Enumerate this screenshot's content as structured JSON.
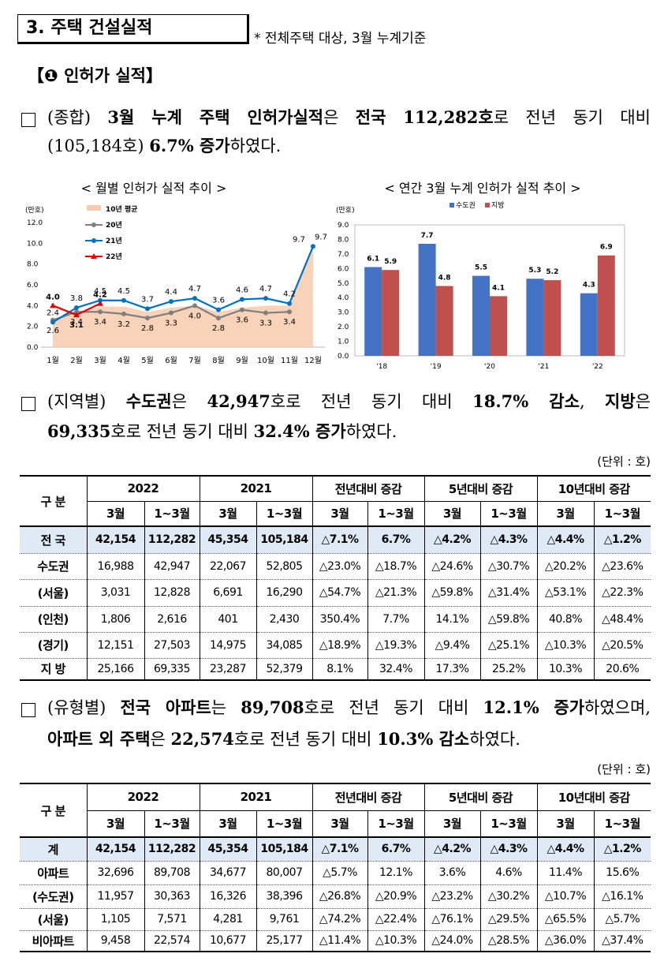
{
  "header": {
    "title": "3. 주택 건설실적",
    "note": "* 전체주택 대상, 3월 누계기준"
  },
  "section": "【❶ 인허가 실적】",
  "paragraphs": [
    {
      "lines": [
        [
          {
            "text": "(종합) ",
            "bold": false
          },
          {
            "text": "3월 누계 주택 인허가실적",
            "bold": true
          },
          {
            "text": "은 ",
            "bold": false
          },
          {
            "text": "전국 112,282호",
            "bold": true
          },
          {
            "text": "로 전년 동기 대비",
            "bold": false
          }
        ],
        [
          {
            "text": "(105,184호) ",
            "bold": false
          },
          {
            "text": "6.7% 증가",
            "bold": true
          },
          {
            "text": "하였다.",
            "bold": false
          }
        ]
      ]
    },
    {
      "lines": [
        [
          {
            "text": "(지역별) ",
            "bold": false
          },
          {
            "text": "수도권",
            "bold": true
          },
          {
            "text": "은 ",
            "bold": false
          },
          {
            "text": "42,947",
            "bold": true
          },
          {
            "text": "호로 전년 동기 대비 ",
            "bold": false
          },
          {
            "text": "18.7% 감소",
            "bold": true
          },
          {
            "text": ", ",
            "bold": false
          },
          {
            "text": "지방",
            "bold": true
          },
          {
            "text": "은",
            "bold": false
          }
        ],
        [
          {
            "text": "69,335",
            "bold": true
          },
          {
            "text": "호로 전년 동기 대비 ",
            "bold": false
          },
          {
            "text": "32.4% 증가",
            "bold": true
          },
          {
            "text": "하였다.",
            "bold": false
          }
        ]
      ]
    },
    {
      "lines": [
        [
          {
            "text": "(유형별) ",
            "bold": false
          },
          {
            "text": "전국 아파트",
            "bold": true
          },
          {
            "text": "는 ",
            "bold": false
          },
          {
            "text": "89,708",
            "bold": true
          },
          {
            "text": "호로 전년 동기 대비 ",
            "bold": false
          },
          {
            "text": "12.1% 증가",
            "bold": true
          },
          {
            "text": "하였으며,",
            "bold": false
          }
        ],
        [
          {
            "text": "아파트 외 주택",
            "bold": true
          },
          {
            "text": "은 ",
            "bold": false
          },
          {
            "text": "22,574",
            "bold": true
          },
          {
            "text": "호로 전년 동기 대비 ",
            "bold": false
          },
          {
            "text": "10.3% 감소",
            "bold": true
          },
          {
            "text": "하였다.",
            "bold": false
          }
        ]
      ]
    }
  ],
  "chart_data": [
    {
      "type": "line",
      "title": "< 월별 인허가 실적 추이 >",
      "unit": "(만호)",
      "categories": [
        "1월",
        "2월",
        "3월",
        "4월",
        "5월",
        "6월",
        "7월",
        "8월",
        "9월",
        "10월",
        "11월",
        "12월"
      ],
      "ylim": [
        0,
        12
      ],
      "yticks": [
        {
          "value": 0,
          "label": "0.0"
        },
        {
          "value": 2,
          "label": "2.0"
        },
        {
          "value": 4,
          "label": "4.0"
        },
        {
          "value": 6,
          "label": "6.0"
        },
        {
          "value": 8,
          "label": "8.0"
        },
        {
          "value": 10,
          "label": "10.0"
        },
        {
          "value": 12,
          "label": "12.0"
        }
      ],
      "series": [
        {
          "name": "10년 평균",
          "kind": "area",
          "color": "#f8cbad",
          "values": [
            2.6,
            3.3,
            3.9,
            3.9,
            3.4,
            3.8,
            4.0,
            3.4,
            3.8,
            4.0,
            4.0,
            9.7
          ],
          "value_labels": [
            null,
            null,
            null,
            null,
            null,
            null,
            null,
            null,
            null,
            null,
            null,
            "9.7"
          ]
        },
        {
          "name": "20년",
          "kind": "line",
          "marker": "circle",
          "color": "#7f7f7f",
          "values": [
            2.6,
            3.4,
            3.4,
            3.2,
            2.8,
            3.3,
            4.0,
            2.8,
            3.6,
            3.3,
            3.4,
            null
          ],
          "value_labels": [
            "2.6",
            "3.4",
            "3.4",
            "3.2",
            "2.8",
            "3.3",
            "4.0",
            "2.8",
            "3.6",
            "3.3",
            "3.4",
            null
          ]
        },
        {
          "name": "21년",
          "kind": "line",
          "marker": "circle",
          "color": "#0070c0",
          "values": [
            2.4,
            3.8,
            4.5,
            4.5,
            3.7,
            4.4,
            4.7,
            3.6,
            4.6,
            4.7,
            4.2,
            9.7
          ],
          "value_labels": [
            "2.4",
            "3.8",
            "4.5",
            "4.5",
            "3.7",
            "4.4",
            "4.7",
            "3.6",
            "4.6",
            "4.7",
            "4.2",
            "9.7"
          ]
        },
        {
          "name": "22년",
          "kind": "line",
          "marker": "triangle",
          "color": "#e00000",
          "values": [
            4.0,
            3.1,
            4.2,
            null,
            null,
            null,
            null,
            null,
            null,
            null,
            null,
            null
          ],
          "value_labels": [
            "4.0",
            "3.1",
            "4.2",
            null,
            null,
            null,
            null,
            null,
            null,
            null,
            null,
            null
          ]
        }
      ]
    },
    {
      "type": "bar",
      "title": "< 연간 3월 누계 인허가 실적 추이 >",
      "unit": "(만호)",
      "categories": [
        "'18",
        "'19",
        "'20",
        "'21",
        "'22"
      ],
      "ylim": [
        0,
        9
      ],
      "yticks": [
        {
          "value": 0,
          "label": "0.0"
        },
        {
          "value": 1,
          "label": "1.0"
        },
        {
          "value": 2,
          "label": "2.0"
        },
        {
          "value": 3,
          "label": "3.0"
        },
        {
          "value": 4,
          "label": "4.0"
        },
        {
          "value": 5,
          "label": "5.0"
        },
        {
          "value": 6,
          "label": "6.0"
        },
        {
          "value": 7,
          "label": "7.0"
        },
        {
          "value": 8,
          "label": "8.0"
        },
        {
          "value": 9,
          "label": "9.0"
        }
      ],
      "series": [
        {
          "name": "수도권",
          "color": "#4472c4",
          "values": [
            6.1,
            7.7,
            5.5,
            5.3,
            4.3
          ]
        },
        {
          "name": "지방",
          "color": "#c0504d",
          "values": [
            5.9,
            4.8,
            4.1,
            5.2,
            6.9
          ]
        }
      ]
    }
  ],
  "tables": [
    {
      "unit": "(단위 : 호)",
      "corner": "구 분",
      "groups": [
        "2022",
        "2021",
        "전년대비 증감",
        "5년대비 증감",
        "10년대비 증감"
      ],
      "sub": [
        "3월",
        "1~3월",
        "3월",
        "1~3월",
        "3월",
        "1~3월",
        "3월",
        "1~3월",
        "3월",
        "1~3월"
      ],
      "rows": [
        [
          "전 국",
          "42,154",
          "112,282",
          "45,354",
          "105,184",
          "△7.1%",
          "6.7%",
          "△4.2%",
          "△4.3%",
          "△4.4%",
          "△1.2%"
        ],
        [
          "수도권",
          "16,988",
          "42,947",
          "22,067",
          "52,805",
          "△23.0%",
          "△18.7%",
          "△24.6%",
          "△30.7%",
          "△20.2%",
          "△23.6%"
        ],
        [
          "(서울)",
          "3,031",
          "12,828",
          "6,691",
          "16,290",
          "△54.7%",
          "△21.3%",
          "△59.8%",
          "△31.4%",
          "△53.1%",
          "△22.3%"
        ],
        [
          "(인천)",
          "1,806",
          "2,616",
          "401",
          "2,430",
          "350.4%",
          "7.7%",
          "14.1%",
          "△59.8%",
          "40.8%",
          "△48.4%"
        ],
        [
          "(경기)",
          "12,151",
          "27,503",
          "14,975",
          "34,085",
          "△18.9%",
          "△19.3%",
          "△9.4%",
          "△25.1%",
          "△10.3%",
          "△20.5%"
        ],
        [
          "지 방",
          "25,166",
          "69,335",
          "23,287",
          "52,379",
          "8.1%",
          "32.4%",
          "17.3%",
          "25.2%",
          "10.3%",
          "20.6%"
        ]
      ]
    },
    {
      "unit": "(단위 : 호)",
      "corner": "구 분",
      "groups": [
        "2022",
        "2021",
        "전년대비 증감",
        "5년대비 증감",
        "10년대비 증감"
      ],
      "sub": [
        "3월",
        "1~3월",
        "3월",
        "1~3월",
        "3월",
        "1~3월",
        "3월",
        "1~3월",
        "3월",
        "1~3월"
      ],
      "rows": [
        [
          "계",
          "42,154",
          "112,282",
          "45,354",
          "105,184",
          "△7.1%",
          "6.7%",
          "△4.2%",
          "△4.3%",
          "△4.4%",
          "△1.2%"
        ],
        [
          "아파트",
          "32,696",
          "89,708",
          "34,677",
          "80,007",
          "△5.7%",
          "12.1%",
          "3.6%",
          "4.6%",
          "11.4%",
          "15.6%"
        ],
        [
          "(수도권)",
          "11,957",
          "30,363",
          "16,326",
          "38,396",
          "△26.8%",
          "△20.9%",
          "△23.2%",
          "△30.2%",
          "△10.7%",
          "△16.1%"
        ],
        [
          "(서울)",
          "1,105",
          "7,571",
          "4,281",
          "9,761",
          "△74.2%",
          "△22.4%",
          "△76.1%",
          "△29.5%",
          "△65.5%",
          "△5.7%"
        ],
        [
          "비아파트",
          "9,458",
          "22,574",
          "10,677",
          "25,177",
          "△11.4%",
          "△10.3%",
          "△24.0%",
          "△28.5%",
          "△36.0%",
          "△37.4%"
        ]
      ]
    }
  ]
}
